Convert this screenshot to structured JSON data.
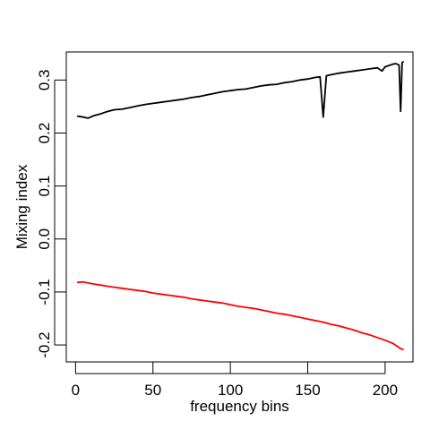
{
  "chart_data": {
    "type": "line",
    "title": "",
    "xlabel": "frequency bins",
    "ylabel": "Mixing index",
    "xlim": [
      -6,
      218
    ],
    "ylim": [
      -0.232,
      0.353
    ],
    "x_ticks": [
      0,
      50,
      100,
      150,
      200
    ],
    "x_tick_labels": [
      "0",
      "50",
      "100",
      "150",
      "200"
    ],
    "y_ticks": [
      -0.2,
      -0.1,
      0.0,
      0.1,
      0.2,
      0.3
    ],
    "y_tick_labels": [
      "-0.2",
      "-0.1",
      "0.0",
      "0.1",
      "0.2",
      "0.3"
    ],
    "grid": false,
    "legend": "none",
    "series": [
      {
        "color": "#000000",
        "x": [
          1,
          5,
          8,
          12,
          16,
          20,
          25,
          30,
          35,
          40,
          45,
          50,
          55,
          60,
          65,
          70,
          75,
          80,
          85,
          90,
          95,
          100,
          105,
          110,
          115,
          120,
          125,
          130,
          135,
          140,
          145,
          150,
          155,
          158,
          160,
          162,
          165,
          170,
          175,
          180,
          185,
          190,
          195,
          198,
          200,
          201,
          203,
          205,
          207,
          209,
          210,
          211,
          212
        ],
        "y": [
          0.232,
          0.23,
          0.228,
          0.233,
          0.236,
          0.24,
          0.244,
          0.245,
          0.248,
          0.251,
          0.254,
          0.256,
          0.258,
          0.26,
          0.262,
          0.264,
          0.267,
          0.269,
          0.272,
          0.275,
          0.278,
          0.28,
          0.282,
          0.283,
          0.286,
          0.289,
          0.291,
          0.292,
          0.295,
          0.297,
          0.3,
          0.302,
          0.305,
          0.306,
          0.23,
          0.308,
          0.31,
          0.313,
          0.315,
          0.317,
          0.319,
          0.321,
          0.323,
          0.317,
          0.325,
          0.326,
          0.328,
          0.33,
          0.331,
          0.328,
          0.241,
          0.333,
          0.335
        ]
      },
      {
        "color": "#ff0000",
        "x": [
          1,
          5,
          8,
          12,
          16,
          20,
          25,
          30,
          35,
          40,
          45,
          50,
          55,
          60,
          65,
          70,
          75,
          80,
          85,
          90,
          95,
          100,
          105,
          110,
          115,
          120,
          125,
          130,
          135,
          140,
          145,
          150,
          155,
          160,
          165,
          170,
          175,
          180,
          185,
          190,
          195,
          200,
          205,
          208,
          210,
          212
        ],
        "y": [
          -0.082,
          -0.081,
          -0.083,
          -0.085,
          -0.087,
          -0.089,
          -0.091,
          -0.093,
          -0.095,
          -0.097,
          -0.099,
          -0.102,
          -0.104,
          -0.106,
          -0.108,
          -0.11,
          -0.113,
          -0.115,
          -0.117,
          -0.119,
          -0.121,
          -0.124,
          -0.127,
          -0.129,
          -0.131,
          -0.134,
          -0.137,
          -0.14,
          -0.142,
          -0.145,
          -0.148,
          -0.151,
          -0.154,
          -0.157,
          -0.161,
          -0.164,
          -0.168,
          -0.172,
          -0.177,
          -0.181,
          -0.186,
          -0.191,
          -0.197,
          -0.203,
          -0.207,
          -0.209
        ]
      }
    ]
  }
}
